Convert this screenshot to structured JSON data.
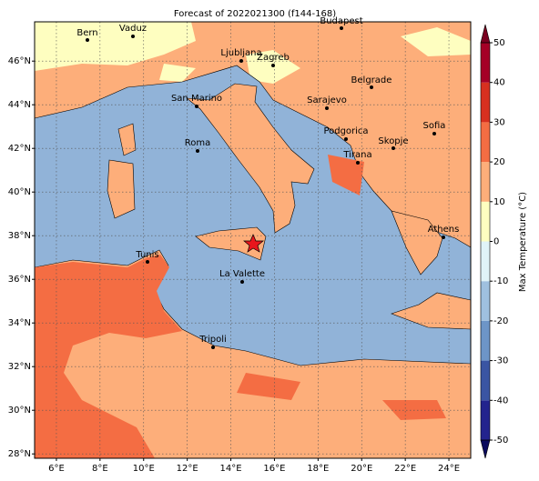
{
  "title": "Forecast of 2022021300 (f144-168)",
  "map": {
    "xlim": [
      5,
      25
    ],
    "ylim": [
      27.8,
      47.8
    ],
    "grid": true,
    "xticks": [
      {
        "value": 6,
        "label": "6°E"
      },
      {
        "value": 8,
        "label": "8°E"
      },
      {
        "value": 10,
        "label": "10°E"
      },
      {
        "value": 12,
        "label": "12°E"
      },
      {
        "value": 14,
        "label": "14°E"
      },
      {
        "value": 16,
        "label": "16°E"
      },
      {
        "value": 18,
        "label": "18°E"
      },
      {
        "value": 20,
        "label": "20°E"
      },
      {
        "value": 22,
        "label": "22°E"
      },
      {
        "value": 24,
        "label": "24°E"
      }
    ],
    "yticks": [
      {
        "value": 28,
        "label": "28°N"
      },
      {
        "value": 30,
        "label": "30°N"
      },
      {
        "value": 32,
        "label": "32°N"
      },
      {
        "value": 34,
        "label": "34°N"
      },
      {
        "value": 36,
        "label": "36°N"
      },
      {
        "value": 38,
        "label": "38°N"
      },
      {
        "value": 40,
        "label": "40°N"
      },
      {
        "value": 42,
        "label": "42°N"
      },
      {
        "value": 44,
        "label": "44°N"
      },
      {
        "value": 46,
        "label": "46°N"
      }
    ]
  },
  "colorbar": {
    "label": "Max Temperature (°C)",
    "lim": [
      -50,
      50
    ],
    "ticks": [
      -50,
      -40,
      -30,
      -20,
      -10,
      0,
      10,
      20,
      30,
      40,
      50
    ],
    "colors": [
      "#23238e",
      "#3a55a3",
      "#6d95c7",
      "#9fc0df",
      "#e0f3f8",
      "#fefec0",
      "#fdae7a",
      "#f46d43",
      "#d7301f",
      "#a50026"
    ],
    "under_color": "#0b0b5e",
    "over_color": "#7a0020"
  },
  "cities": [
    "Bern",
    "Vaduz",
    "Budapest",
    "Ljubljana",
    "Zagreb",
    "Belgrade",
    "San Marino",
    "Sarajevo",
    "Sofia",
    "Podgorica",
    "Skopje",
    "Roma",
    "Tirana",
    "Athens",
    "Tunis",
    "La Valette",
    "Tripoli"
  ]
}
